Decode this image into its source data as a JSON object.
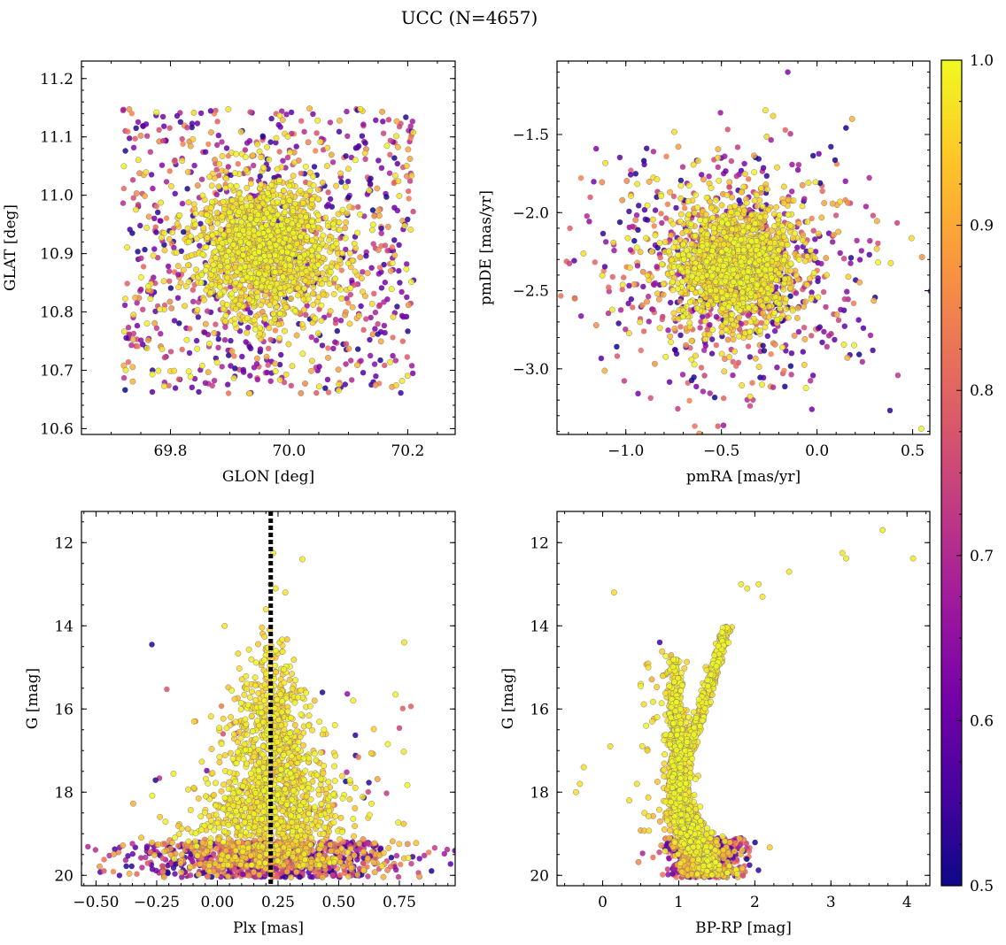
{
  "chart_data": {
    "type": "scatter",
    "title": "UCC (N=4657)",
    "colorbar": {
      "range": [
        0.5,
        1.0
      ],
      "ticks": [
        "0.5",
        "0.6",
        "0.7",
        "0.8",
        "0.9",
        "1.0"
      ],
      "colormap": "plasma",
      "stops": [
        "#0d0887",
        "#46039f",
        "#7201a8",
        "#9c179e",
        "#bd3786",
        "#d8576b",
        "#ed7953",
        "#fb9f3a",
        "#fdca26",
        "#f0f921"
      ]
    },
    "panels": [
      {
        "id": "glon-glat",
        "xlabel": "GLON [deg]",
        "ylabel": "GLAT [deg]",
        "xlim": [
          69.65,
          70.28
        ],
        "ylim": [
          10.59,
          11.23
        ],
        "xticks": [
          69.8,
          70.0,
          70.2
        ],
        "xtick_labels": [
          "69.8",
          "70.0",
          "70.2"
        ],
        "yticks": [
          10.6,
          10.7,
          10.8,
          10.9,
          11.0,
          11.1,
          11.2
        ],
        "ytick_labels": [
          "10.6",
          "10.7",
          "10.8",
          "10.9",
          "11.0",
          "11.1",
          "11.2"
        ],
        "y_inverted": false,
        "cluster": {
          "center": [
            69.96,
            10.91
          ],
          "spread": [
            0.06,
            0.06
          ],
          "count": 1400
        },
        "field": {
          "x_range": [
            69.72,
            70.21
          ],
          "y_range": [
            10.66,
            11.15
          ],
          "count": 900
        }
      },
      {
        "id": "pmra-pmde",
        "xlabel": "pmRA [mas/yr]",
        "ylabel": "pmDE [mas/yr]",
        "xlim": [
          -1.36,
          0.59
        ],
        "ylim": [
          -3.42,
          -1.03
        ],
        "xticks": [
          -1.0,
          -0.5,
          0.0,
          0.5
        ],
        "xtick_labels": [
          "−1.0",
          "−0.5",
          "0.0",
          "0.5"
        ],
        "yticks": [
          -3.0,
          -2.5,
          -2.0,
          -1.5
        ],
        "ytick_labels": [
          "−3.0",
          "−2.5",
          "−2.0",
          "−1.5"
        ],
        "y_inverted": false,
        "cluster": {
          "center": [
            -0.42,
            -2.33
          ],
          "spread": [
            0.16,
            0.18
          ],
          "count": 1400
        },
        "field": {
          "center": [
            -0.45,
            -2.35
          ],
          "spread": [
            0.35,
            0.38
          ],
          "count": 900
        }
      },
      {
        "id": "plx-g",
        "xlabel": "Plx [mas]",
        "ylabel": "G [mag]",
        "xlim": [
          -0.56,
          0.98
        ],
        "ylim": [
          20.25,
          11.25
        ],
        "xticks": [
          -0.5,
          -0.25,
          0.0,
          0.25,
          0.5,
          0.75
        ],
        "xtick_labels": [
          "−0.50",
          "−0.25",
          "0.00",
          "0.25",
          "0.50",
          "0.75"
        ],
        "yticks": [
          12,
          14,
          16,
          18,
          20
        ],
        "ytick_labels": [
          "12",
          "14",
          "16",
          "18",
          "20"
        ],
        "y_inverted": true,
        "reference_line": {
          "x": 0.22,
          "style": "dotted"
        }
      },
      {
        "id": "bprp-g",
        "xlabel": "BP-RP [mag]",
        "ylabel": "G [mag]",
        "xlim": [
          -0.6,
          4.3
        ],
        "ylim": [
          20.25,
          11.25
        ],
        "xticks": [
          0,
          1,
          2,
          3,
          4
        ],
        "xtick_labels": [
          "0",
          "1",
          "2",
          "3",
          "4"
        ],
        "yticks": [
          12,
          14,
          16,
          18,
          20
        ],
        "ytick_labels": [
          "12",
          "14",
          "16",
          "18",
          "20"
        ],
        "y_inverted": true,
        "giant_branch": [
          [
            1.82,
            13.0
          ],
          [
            1.9,
            13.1
          ],
          [
            2.05,
            13.0
          ],
          [
            2.1,
            13.3
          ],
          [
            2.45,
            12.7
          ],
          [
            3.15,
            12.25
          ],
          [
            3.2,
            12.38
          ],
          [
            3.68,
            11.7
          ],
          [
            4.08,
            12.38
          ]
        ],
        "outliers": [
          [
            -0.35,
            18.0
          ],
          [
            -0.3,
            17.8
          ],
          [
            -0.25,
            17.4
          ],
          [
            0.1,
            16.9
          ],
          [
            0.15,
            13.2
          ],
          [
            0.75,
            14.4
          ],
          [
            0.5,
            15.4
          ],
          [
            0.6,
            15.0
          ],
          [
            0.35,
            18.2
          ],
          [
            0.45,
            17.8
          ],
          [
            0.55,
            18.5
          ],
          [
            0.65,
            16.3
          ]
        ]
      }
    ]
  }
}
